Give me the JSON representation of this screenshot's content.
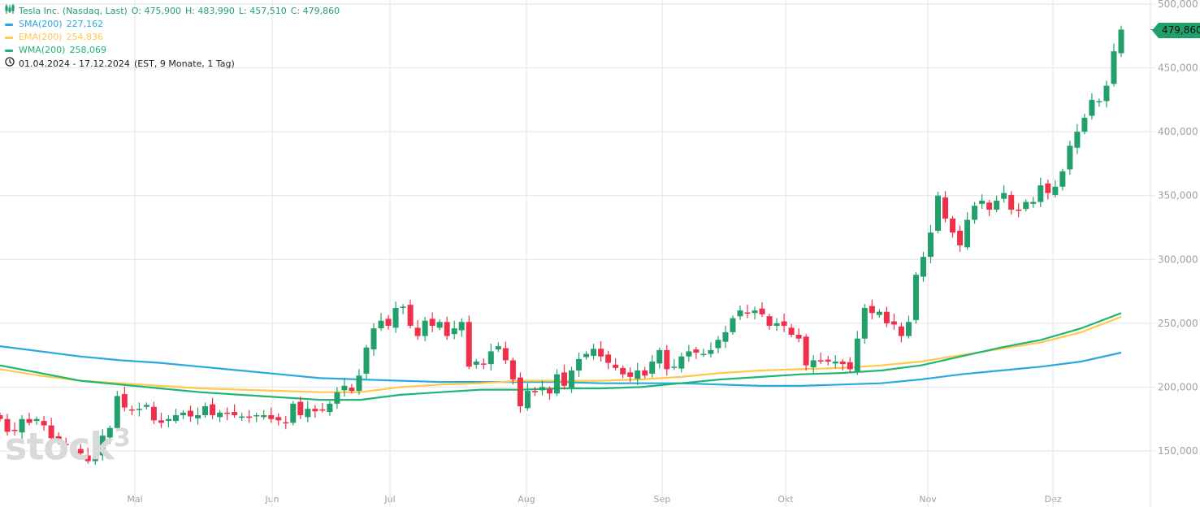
{
  "header": {
    "instrument": "Tesla Inc. (Nasdaq, Last)",
    "open": "O: 475,900",
    "high": "H: 483,990",
    "low": "L: 457,510",
    "close": "C: 479,860",
    "icon": "candlestick-icon"
  },
  "indicators": [
    {
      "name": "SMA(200)",
      "value": "227,162",
      "color": "#2aa8e0"
    },
    {
      "name": "EMA(200)",
      "value": "254,836",
      "color": "#ffc94a"
    },
    {
      "name": "WMA(200)",
      "value": "258,069",
      "color": "#1fb574"
    }
  ],
  "range": {
    "icon": "clock-icon",
    "dates": "01.04.2024 - 17.12.2024",
    "detail": "(EST, 9 Monate, 1 Tag)"
  },
  "last_price_label": "479,860",
  "watermark": "stock3",
  "colors": {
    "up": "#22a06b",
    "down": "#f0304a",
    "grid": "#e3e3ea",
    "axis_text": "#a0a0a0"
  },
  "chart_data": {
    "type": "candlestick",
    "title": "Tesla Inc. (Nasdaq, Last)",
    "y_ticks": [
      "150,000",
      "200,000",
      "250,000",
      "300,000",
      "350,000",
      "400,000",
      "450,000",
      "500,000"
    ],
    "ylim": [
      150,
      500
    ],
    "x_ticks": [
      "Mai",
      "Jun",
      "Jul",
      "Aug",
      "Sep",
      "Okt",
      "Nov",
      "Dez"
    ],
    "grid": true,
    "closes": [
      175,
      165,
      166,
      175,
      172,
      175,
      170,
      160,
      157,
      155,
      150,
      148,
      142,
      145,
      162,
      168,
      193,
      184,
      182,
      183,
      186,
      174,
      172,
      175,
      178,
      180,
      177,
      178,
      185,
      178,
      180,
      179,
      178,
      177,
      176,
      178,
      178,
      175,
      174,
      172,
      187,
      178,
      183,
      181,
      182,
      187,
      196,
      201,
      197,
      209,
      231,
      246,
      252,
      248,
      262,
      263,
      248,
      240,
      252,
      248,
      251,
      240,
      246,
      251,
      216,
      220,
      218,
      228,
      232,
      221,
      206,
      185,
      197,
      196,
      200,
      195,
      210,
      201,
      213,
      222,
      226,
      230,
      224,
      219,
      215,
      210,
      208,
      213,
      209,
      220,
      229,
      214,
      216,
      224,
      228,
      227,
      226,
      229,
      237,
      243,
      254,
      260,
      258,
      260,
      257,
      248,
      250,
      248,
      241,
      238,
      217,
      221,
      220,
      220,
      220,
      218,
      214,
      238,
      262,
      258,
      259,
      250,
      249,
      240,
      251,
      288,
      302,
      321,
      350,
      332,
      321,
      311,
      331,
      342,
      346,
      339,
      346,
      352,
      339,
      338,
      345,
      345,
      358,
      352,
      357,
      369,
      389,
      400,
      411,
      425,
      424,
      436,
      463,
      480
    ],
    "series": [
      {
        "name": "SMA(200)",
        "values": [
          232,
          228,
          224,
          221,
          219,
          216,
          213,
          210,
          207,
          206,
          205,
          204,
          204,
          204,
          204,
          203,
          203,
          203,
          202,
          201,
          201,
          202,
          203,
          206,
          210,
          213,
          216,
          220,
          227
        ]
      },
      {
        "name": "EMA(200)",
        "values": [
          214,
          209,
          205,
          203,
          201,
          199,
          198,
          197,
          196,
          196,
          200,
          202,
          203,
          205,
          205,
          205,
          206,
          208,
          211,
          213,
          214,
          215,
          217,
          220,
          225,
          230,
          235,
          243,
          255
        ]
      },
      {
        "name": "WMA(200)",
        "values": [
          217,
          211,
          205,
          202,
          199,
          196,
          194,
          192,
          190,
          190,
          194,
          196,
          198,
          198,
          199,
          199,
          200,
          203,
          206,
          208,
          210,
          211,
          213,
          217,
          224,
          231,
          237,
          246,
          258
        ]
      }
    ]
  }
}
